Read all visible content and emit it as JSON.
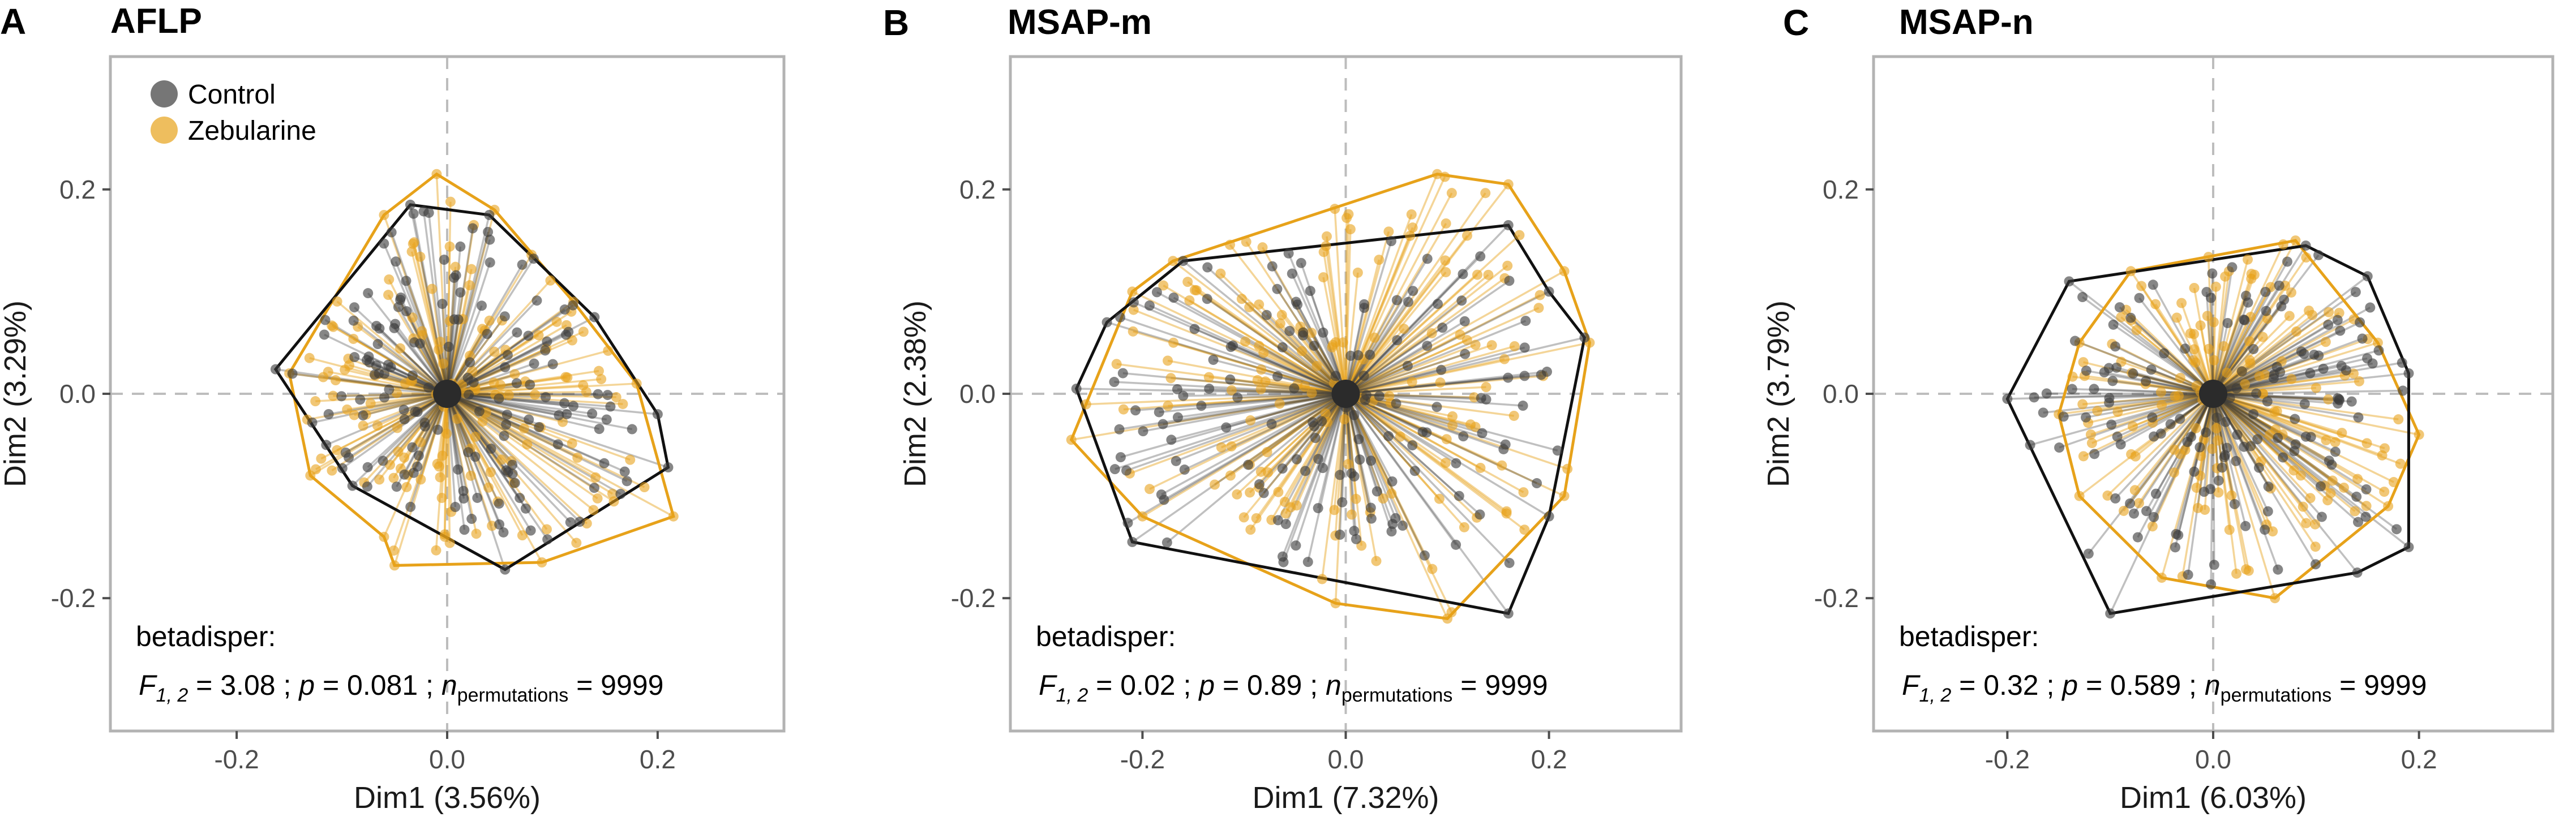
{
  "figure": {
    "panels_description": "Three PCoA plots of beta dispersion"
  },
  "colors": {
    "control": "#3c3c3c",
    "zebularine": "#e7a21a",
    "frame": "#b3b3b3",
    "zero": "#bdbdbd"
  },
  "legend": {
    "items": [
      "Control",
      "Zebularine"
    ]
  },
  "chart_data": [
    {
      "type": "scatter",
      "panel_label": "A",
      "title": "AFLP",
      "xlabel": "Dim1",
      "xlabel_pct": "(3.56%)",
      "ylabel": "Dim2",
      "ylabel_pct": "(3.29%)",
      "xlim": [
        -0.32,
        0.32
      ],
      "ylim": [
        -0.33,
        0.33
      ],
      "xticks": [
        -0.2,
        0.0,
        0.2
      ],
      "xtick_labels": [
        "-0.2",
        "0.0",
        "0.2"
      ],
      "yticks": [
        -0.2,
        0.0,
        0.2
      ],
      "ytick_labels": [
        "-0.2",
        "0.0",
        "0.2"
      ],
      "centroid": [
        0.0,
        0.0
      ],
      "hulls": {
        "Control": [
          [
            -0.163,
            0.024
          ],
          [
            -0.035,
            0.185
          ],
          [
            0.04,
            0.175
          ],
          [
            0.14,
            0.075
          ],
          [
            0.2,
            -0.02
          ],
          [
            0.21,
            -0.072
          ],
          [
            0.055,
            -0.172
          ],
          [
            -0.09,
            -0.09
          ],
          [
            -0.163,
            0.024
          ]
        ],
        "Zebularine": [
          [
            -0.15,
            0.02
          ],
          [
            -0.06,
            0.175
          ],
          [
            -0.01,
            0.215
          ],
          [
            0.045,
            0.18
          ],
          [
            0.12,
            0.09
          ],
          [
            0.18,
            0.01
          ],
          [
            0.215,
            -0.12
          ],
          [
            0.09,
            -0.165
          ],
          [
            -0.05,
            -0.168
          ],
          [
            -0.06,
            -0.14
          ],
          [
            -0.13,
            -0.08
          ],
          [
            -0.15,
            0.02
          ]
        ]
      },
      "point_spread": [
        0.16,
        0.15
      ],
      "annotation": {
        "heading": "betadisper:",
        "f_sub": "1, 2",
        "f": "3.08",
        "p": "0.081",
        "n_sub": "permutations",
        "n": "9999"
      }
    },
    {
      "type": "scatter",
      "panel_label": "B",
      "title": "MSAP-m",
      "xlabel": "Dim1",
      "xlabel_pct": "(7.32%)",
      "ylabel": "Dim2",
      "ylabel_pct": "(2.38%)",
      "xlim": [
        -0.33,
        0.33
      ],
      "ylim": [
        -0.33,
        0.33
      ],
      "xticks": [
        -0.2,
        0.0,
        0.2
      ],
      "xtick_labels": [
        "-0.2",
        "0.0",
        "0.2"
      ],
      "yticks": [
        -0.2,
        0.0,
        0.2
      ],
      "ytick_labels": [
        "-0.2",
        "0.0",
        "0.2"
      ],
      "centroid": [
        0.0,
        0.0
      ],
      "hulls": {
        "Control": [
          [
            -0.265,
            0.005
          ],
          [
            -0.235,
            0.07
          ],
          [
            -0.16,
            0.13
          ],
          [
            0.16,
            0.165
          ],
          [
            0.2,
            0.1
          ],
          [
            0.235,
            0.055
          ],
          [
            0.2,
            -0.12
          ],
          [
            0.16,
            -0.215
          ],
          [
            -0.21,
            -0.145
          ],
          [
            -0.265,
            0.005
          ]
        ],
        "Zebularine": [
          [
            -0.27,
            -0.045
          ],
          [
            -0.21,
            0.1
          ],
          [
            -0.17,
            0.13
          ],
          [
            0.09,
            0.215
          ],
          [
            0.16,
            0.205
          ],
          [
            0.215,
            0.12
          ],
          [
            0.24,
            0.05
          ],
          [
            0.215,
            -0.1
          ],
          [
            0.1,
            -0.22
          ],
          [
            -0.01,
            -0.205
          ],
          [
            -0.2,
            -0.12
          ],
          [
            -0.27,
            -0.045
          ]
        ]
      },
      "point_spread": [
        0.2,
        0.13
      ],
      "annotation": {
        "heading": "betadisper:",
        "f_sub": "1, 2",
        "f": "0.02",
        "p": "0.89",
        "n_sub": "permutations",
        "n": "9999"
      }
    },
    {
      "type": "scatter",
      "panel_label": "C",
      "title": "MSAP-n",
      "xlabel": "Dim1",
      "xlabel_pct": "(6.03%)",
      "ylabel": "Dim2",
      "ylabel_pct": "(3.79%)",
      "xlim": [
        -0.33,
        0.33
      ],
      "ylim": [
        -0.33,
        0.33
      ],
      "xticks": [
        -0.2,
        0.0,
        0.2
      ],
      "xtick_labels": [
        "-0.2",
        "0.0",
        "0.2"
      ],
      "yticks": [
        -0.2,
        0.0,
        0.2
      ],
      "ytick_labels": [
        "-0.2",
        "0.0",
        "0.2"
      ],
      "centroid": [
        0.0,
        0.0
      ],
      "hulls": {
        "Control": [
          [
            -0.2,
            -0.005
          ],
          [
            -0.14,
            0.11
          ],
          [
            0.09,
            0.145
          ],
          [
            0.15,
            0.115
          ],
          [
            0.19,
            0.02
          ],
          [
            0.19,
            -0.15
          ],
          [
            0.14,
            -0.175
          ],
          [
            -0.1,
            -0.215
          ],
          [
            -0.2,
            -0.005
          ]
        ],
        "Zebularine": [
          [
            -0.13,
            0.05
          ],
          [
            -0.08,
            0.12
          ],
          [
            0.08,
            0.15
          ],
          [
            0.16,
            0.05
          ],
          [
            0.2,
            -0.04
          ],
          [
            0.17,
            -0.11
          ],
          [
            0.06,
            -0.2
          ],
          [
            -0.05,
            -0.18
          ],
          [
            -0.13,
            -0.1
          ],
          [
            -0.15,
            -0.02
          ],
          [
            -0.13,
            0.05
          ]
        ]
      },
      "point_spread": [
        0.14,
        0.12
      ],
      "annotation": {
        "heading": "betadisper:",
        "f_sub": "1, 2",
        "f": "0.32",
        "p": "0.589",
        "n_sub": "permutations",
        "n": "9999"
      }
    }
  ]
}
